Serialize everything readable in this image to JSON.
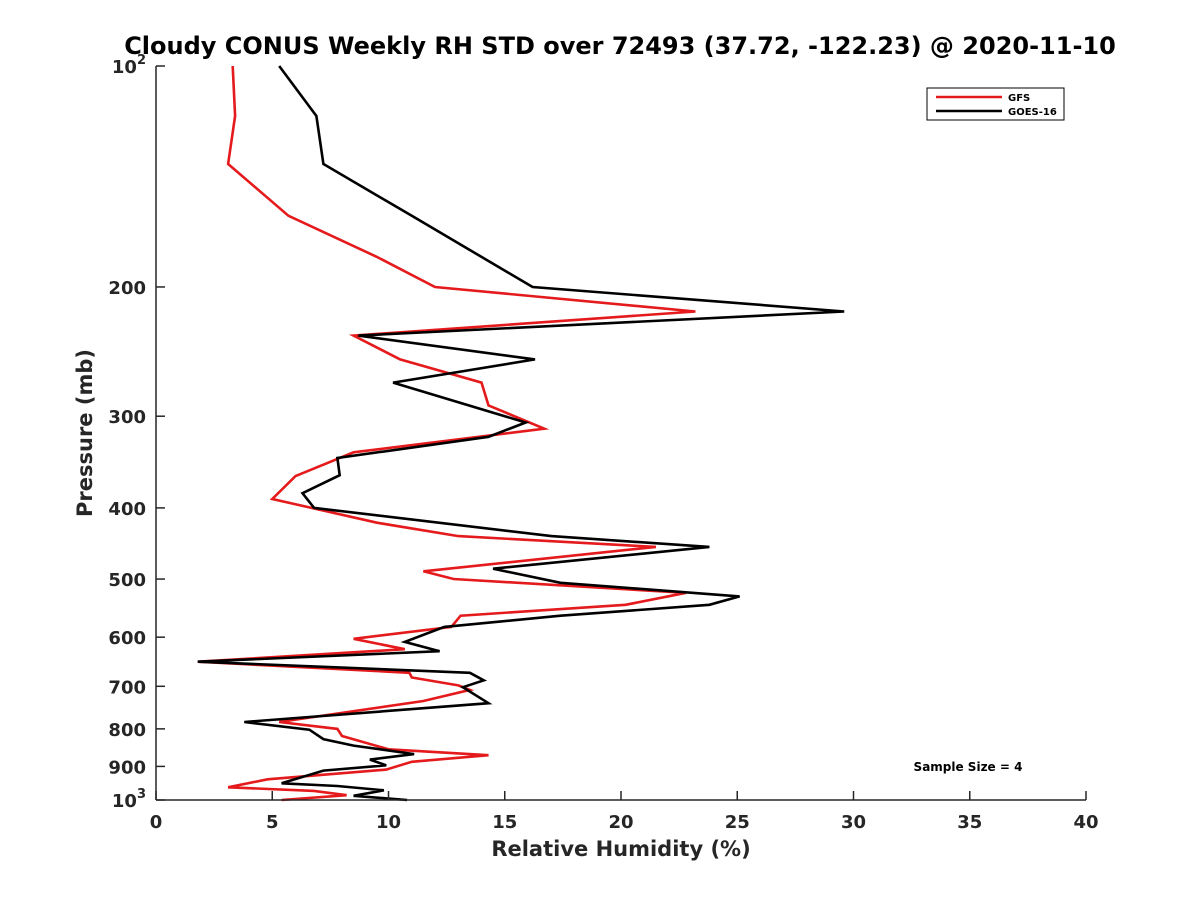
{
  "chart_data": {
    "type": "line",
    "title": "Cloudy CONUS Weekly RH STD over 72493 (37.72, -122.23) @ 2020-11-10",
    "xlabel": "Relative Humidity (%)",
    "ylabel": "Pressure (mb)",
    "xlim": [
      0,
      40
    ],
    "ylim": [
      100,
      1000
    ],
    "y_scale": "log",
    "y_direction": "reversed",
    "x_ticks": [
      "0",
      "5",
      "10",
      "15",
      "20",
      "25",
      "30",
      "35",
      "40"
    ],
    "y_ticks": [
      {
        "value": 100,
        "base": "10",
        "exp": "2"
      },
      {
        "value": 200,
        "label": "200"
      },
      {
        "value": 300,
        "label": "300"
      },
      {
        "value": 400,
        "label": "400"
      },
      {
        "value": 500,
        "label": "500"
      },
      {
        "value": 600,
        "label": "600"
      },
      {
        "value": 700,
        "label": "700"
      },
      {
        "value": 800,
        "label": "800"
      },
      {
        "value": 900,
        "label": "900"
      },
      {
        "value": 1000,
        "base": "10",
        "exp": "3"
      }
    ],
    "grid": false,
    "legend": "top-right",
    "series": [
      {
        "name": "GFS",
        "color": "#e41a1c",
        "points": [
          [
            3.3,
            100
          ],
          [
            3.4,
            117
          ],
          [
            3.1,
            136
          ],
          [
            5.7,
            160
          ],
          [
            9.5,
            182
          ],
          [
            12.0,
            200
          ],
          [
            23.2,
            216
          ],
          [
            8.5,
            233
          ],
          [
            10.5,
            251
          ],
          [
            14.0,
            270
          ],
          [
            14.3,
            290
          ],
          [
            16.7,
            312
          ],
          [
            8.5,
            336
          ],
          [
            6.0,
            362
          ],
          [
            5.0,
            389
          ],
          [
            9.5,
            419
          ],
          [
            13.0,
            437
          ],
          [
            21.5,
            452
          ],
          [
            11.5,
            488
          ],
          [
            12.8,
            500
          ],
          [
            22.8,
            522
          ],
          [
            20.2,
            542
          ],
          [
            13.1,
            561
          ],
          [
            12.7,
            581
          ],
          [
            8.5,
            603
          ],
          [
            10.7,
            623
          ],
          [
            1.8,
            648
          ],
          [
            10.9,
            671
          ],
          [
            11.0,
            681
          ],
          [
            13.0,
            698
          ],
          [
            13.5,
            708
          ],
          [
            11.5,
            733
          ],
          [
            5.3,
            783
          ],
          [
            7.8,
            800
          ],
          [
            8.0,
            818
          ],
          [
            10.0,
            853
          ],
          [
            14.3,
            869
          ],
          [
            11.0,
            887
          ],
          [
            9.9,
            909
          ],
          [
            4.8,
            937
          ],
          [
            3.1,
            961
          ],
          [
            6.8,
            972
          ],
          [
            8.2,
            985
          ],
          [
            5.4,
            1000
          ]
        ]
      },
      {
        "name": "GOES-16",
        "color": "#000000",
        "points": [
          [
            5.3,
            100
          ],
          [
            6.9,
            117
          ],
          [
            7.2,
            136
          ],
          [
            11.0,
            160
          ],
          [
            14.0,
            182
          ],
          [
            16.2,
            200
          ],
          [
            29.6,
            216
          ],
          [
            8.7,
            233
          ],
          [
            16.3,
            251
          ],
          [
            10.2,
            270
          ],
          [
            15.9,
            306
          ],
          [
            14.3,
            320
          ],
          [
            7.8,
            342
          ],
          [
            7.9,
            361
          ],
          [
            6.3,
            382
          ],
          [
            6.8,
            400
          ],
          [
            17.0,
            437
          ],
          [
            23.8,
            452
          ],
          [
            14.5,
            484
          ],
          [
            17.4,
            506
          ],
          [
            25.1,
            528
          ],
          [
            23.8,
            542
          ],
          [
            17.4,
            561
          ],
          [
            12.4,
            581
          ],
          [
            10.7,
            609
          ],
          [
            12.2,
            627
          ],
          [
            1.8,
            648
          ],
          [
            13.5,
            671
          ],
          [
            14.1,
            687
          ],
          [
            13.2,
            702
          ],
          [
            14.3,
            738
          ],
          [
            3.8,
            783
          ],
          [
            6.6,
            802
          ],
          [
            7.2,
            826
          ],
          [
            8.5,
            843
          ],
          [
            11.1,
            866
          ],
          [
            9.2,
            881
          ],
          [
            9.9,
            897
          ],
          [
            7.2,
            912
          ],
          [
            5.4,
            949
          ],
          [
            7.8,
            957
          ],
          [
            9.8,
            970
          ],
          [
            8.5,
            987
          ],
          [
            10.8,
            1000
          ]
        ]
      }
    ],
    "annotation": "Sample Size = 4"
  }
}
